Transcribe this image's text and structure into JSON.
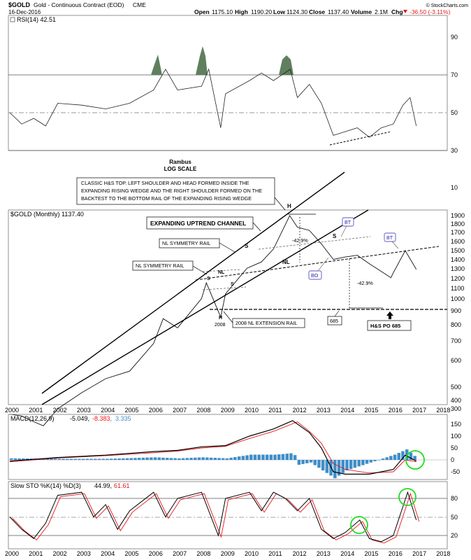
{
  "header": {
    "symbol": "$GOLD",
    "name": "Gold - Continuous Contract (EOD)",
    "exchange": "CME",
    "date": "16-Dec-2016",
    "open_label": "Open",
    "open": "1175.10",
    "high_label": "High",
    "high": "1190.20",
    "low_label": "Low",
    "low": "1124.30",
    "close_label": "Close",
    "close": "1137.40",
    "volume_label": "Volume",
    "volume": "2.1M",
    "chg_label": "Chg",
    "chg": "-36.50 (-3.11%)",
    "copyright": "© StockCharts.com"
  },
  "colors": {
    "rsi_fill": "#5f7f5f",
    "macd_signal": "#e8161c",
    "macd_hist": "#3f8ec8",
    "sto_d": "#e8161c",
    "highlight_circle": "#22dd22",
    "label_blue": "#2323b0"
  },
  "rsi_panel": {
    "label": "RSI(14) 42.51",
    "ticks": [
      "90",
      "70",
      "50",
      "30",
      "10"
    ],
    "rambus_title": "Rambus",
    "rambus_subtitle": "LOG SCALE"
  },
  "price_panel": {
    "label": "$GOLD (Monthly) 1137.40",
    "ticks": [
      "1900",
      "1800",
      "1700",
      "1600",
      "1500",
      "1400",
      "1300",
      "1200",
      "1100",
      "1000",
      "900",
      "800",
      "700",
      "600",
      "500",
      "400",
      "300"
    ]
  },
  "annotations": {
    "box_line1": "CLASSIC H&S TOP.  LEFT SHOULDER AND HEAD FORMED INSIDE THE",
    "box_line2": "EXPANDING RISING WEDGE AND THE RIGHT SHOULDER FORMED ON THE",
    "box_line3": "BACKTEST TO THE BOTTOM RAIL OF THE EXPANDING RISING WEDGE",
    "channel": "EXPANDING UPTREND CHANNEL",
    "nl_sym_1": "NL SYMMETRY RAIL",
    "nl_sym_2": "NL SYMMETRY RAIL",
    "nl_ext": "2008 NL EXTENSION RAIL",
    "y2008": "2008",
    "h_top": "H",
    "h_2008": "H",
    "s_left": "S",
    "s_right": "S",
    "s_2008_left": "S",
    "s_2008_right": "S",
    "nl_2008": "NL",
    "nl_main": "NL",
    "pct1": "-42.9%",
    "pct2": "-42.9%",
    "bt1": "BT",
    "bt2": "BT",
    "bo": "BO",
    "po_value": "685",
    "po_label": "H&S PO 685"
  },
  "macd_panel": {
    "label": "MACD(12,26,9)",
    "macd": "-5.049,",
    "signal": "-8.383,",
    "hist": "3.335",
    "ticks": [
      "150",
      "100",
      "50",
      "0",
      "-50"
    ]
  },
  "sto_panel": {
    "label": "Slow STO %K(14) %D(3)",
    "k": "44.99,",
    "d": "61.61",
    "ticks": [
      "80",
      "50",
      "20"
    ]
  },
  "x_axis": {
    "years": [
      "2000",
      "2001",
      "2002",
      "2003",
      "2004",
      "2005",
      "2006",
      "2007",
      "2008",
      "2009",
      "2010",
      "2011",
      "2012",
      "2013",
      "2014",
      "2015",
      "2016",
      "2017",
      "2018"
    ]
  },
  "chart_data": [
    {
      "type": "line",
      "title": "RSI(14) 42.51",
      "ylim": [
        25,
        100
      ],
      "x": [
        2000,
        2000.5,
        2001,
        2001.5,
        2002,
        2003,
        2004,
        2005,
        2006,
        2006.5,
        2007,
        2008,
        2008.3,
        2008.8,
        2009,
        2010,
        2010.5,
        2011,
        2011.7,
        2012,
        2012.5,
        2013,
        2013.5,
        2014,
        2014.5,
        2015,
        2015.5,
        2016,
        2016.4,
        2016.7,
        2016.96
      ],
      "values": [
        50,
        44,
        47,
        43,
        55,
        54,
        52,
        55,
        62,
        73,
        62,
        64,
        73,
        42,
        60,
        67,
        71,
        67,
        73,
        58,
        65,
        55,
        38,
        40,
        42,
        37,
        42,
        44,
        54,
        58,
        43
      ]
    },
    {
      "type": "line",
      "title": "$GOLD (Monthly) 1137.40",
      "ylim": [
        230,
        2000
      ],
      "scale": "log",
      "x": [
        2000,
        2000.5,
        2001,
        2001.4,
        2002,
        2003,
        2004,
        2005,
        2006,
        2006.4,
        2007,
        2008,
        2008.2,
        2008.8,
        2009,
        2009.9,
        2010.5,
        2011,
        2011.68,
        2012,
        2012.5,
        2013,
        2013.5,
        2014,
        2014.5,
        2015,
        2015.9,
        2016,
        2016.5,
        2016.96
      ],
      "values": [
        285,
        280,
        265,
        255,
        300,
        350,
        400,
        430,
        560,
        710,
        650,
        860,
        1000,
        720,
        900,
        1150,
        1220,
        1380,
        1900,
        1700,
        1650,
        1450,
        1250,
        1280,
        1300,
        1200,
        1050,
        1100,
        1360,
        1137
      ]
    },
    {
      "type": "line",
      "title": "MACD(12,26,9) -5.049, -8.383, 3.335",
      "ylim": [
        -75,
        165
      ],
      "series": [
        {
          "x": [
            2000,
            2002,
            2004,
            2006,
            2007,
            2008,
            2009,
            2010,
            2011,
            2011.8,
            2012.5,
            2013,
            2013.5,
            2014,
            2015,
            2016,
            2016.5,
            2016.96
          ],
          "values": [
            -5,
            10,
            20,
            35,
            40,
            55,
            60,
            100,
            130,
            165,
            115,
            50,
            -50,
            -60,
            -60,
            -40,
            20,
            -5
          ]
        },
        {
          "x": [
            2000,
            2002,
            2004,
            2006,
            2007,
            2008,
            2009,
            2010,
            2011,
            2012,
            2012.5,
            2013,
            2013.5,
            2014,
            2015,
            2016,
            2016.5,
            2016.96
          ],
          "values": [
            -8,
            8,
            18,
            30,
            37,
            50,
            57,
            90,
            120,
            160,
            120,
            70,
            -15,
            -40,
            -55,
            -50,
            0,
            -8
          ]
        }
      ]
    },
    {
      "type": "line",
      "title": "Slow STO %K(14) %D(3) 44.99, 61.61",
      "ylim": [
        0,
        100
      ],
      "x": [
        2000,
        2000.5,
        2001,
        2001.5,
        2002,
        2003,
        2003.5,
        2004,
        2004.5,
        2005,
        2006,
        2006.5,
        2007,
        2008,
        2008.7,
        2009,
        2010,
        2010.5,
        2011,
        2011.5,
        2012,
        2012.5,
        2013,
        2013.5,
        2014,
        2014.6,
        2015,
        2015.5,
        2016,
        2016.6,
        2016.96
      ],
      "values": [
        50,
        30,
        15,
        40,
        85,
        90,
        50,
        70,
        30,
        60,
        90,
        50,
        80,
        90,
        20,
        80,
        90,
        60,
        90,
        80,
        60,
        80,
        30,
        15,
        25,
        45,
        15,
        10,
        20,
        90,
        45
      ]
    }
  ]
}
